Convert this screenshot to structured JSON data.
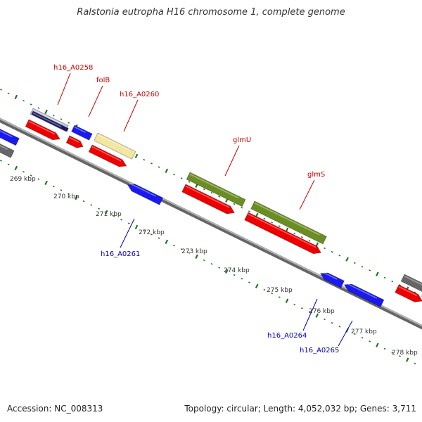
{
  "title": "Ralstonia eutropha H16 chromosome 1, complete genome",
  "footer": {
    "accession": "Accession: NC_008313",
    "summary": "Topology: circular; Length: 4,052,032 bp; Genes: 3,711"
  },
  "colors": {
    "forward_label": "#cc0000",
    "reverse_label": "#0000bb",
    "backbone": "#888888",
    "tick": "#1f7a1f",
    "cds": "#ee0000",
    "reverse_gene": "#1a1aee",
    "highlight_green": "#6b8e23",
    "pale": "#f2e6a0",
    "grey": "#666666",
    "navy": "#1a1a66"
  },
  "scale": {
    "labels": [
      "269 kbp",
      "270 kbp",
      "271 kbp",
      "272 kbp",
      "273 kbp",
      "274 kbp",
      "275 kbp",
      "276 kbp",
      "277 kbp",
      "278 kbp"
    ]
  },
  "gene_labels": [
    {
      "name": "h16_A0258",
      "strand": "forward"
    },
    {
      "name": "folB",
      "strand": "forward"
    },
    {
      "name": "h16_A0260",
      "strand": "forward"
    },
    {
      "name": "glmU",
      "strand": "forward"
    },
    {
      "name": "glmS",
      "strand": "forward"
    },
    {
      "name": "h16_A0261",
      "strand": "reverse"
    },
    {
      "name": "h16_A0264",
      "strand": "reverse"
    },
    {
      "name": "h16_A0265",
      "strand": "reverse"
    }
  ]
}
